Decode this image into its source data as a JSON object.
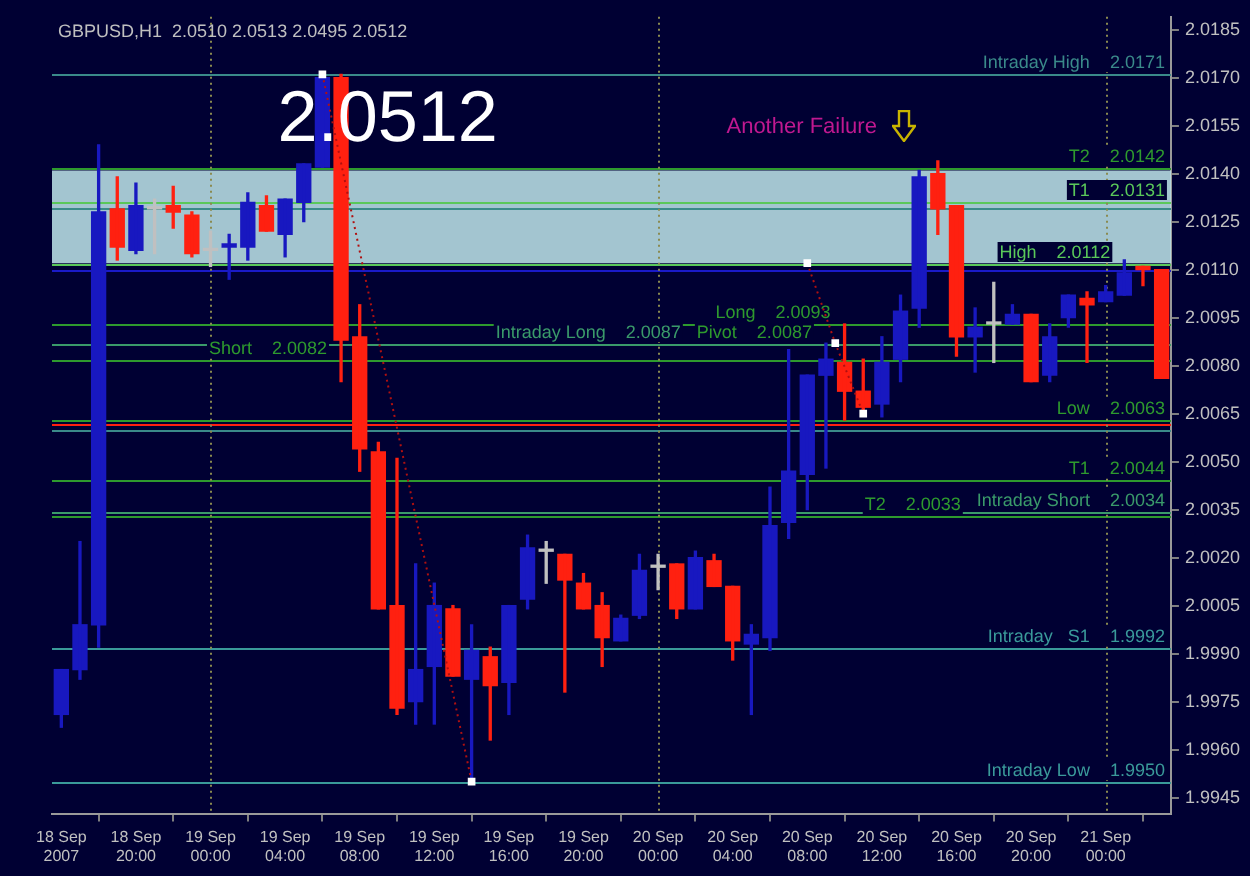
{
  "chart_data": {
    "type": "candlestick",
    "title": "GBPUSD,H1  2.0510 2.0513 2.0495 2.0512",
    "x": [
      "2007-09-18T16:00",
      "2007-09-18T17:00",
      "2007-09-18T18:00",
      "2007-09-18T19:00",
      "2007-09-18T20:00",
      "2007-09-18T21:00",
      "2007-09-18T22:00",
      "2007-09-18T23:00",
      "2007-09-19T00:00",
      "2007-09-19T01:00",
      "2007-09-19T02:00",
      "2007-09-19T03:00",
      "2007-09-19T04:00",
      "2007-09-19T05:00",
      "2007-09-19T06:00",
      "2007-09-19T07:00",
      "2007-09-19T08:00",
      "2007-09-19T09:00",
      "2007-09-19T10:00",
      "2007-09-19T11:00",
      "2007-09-19T12:00",
      "2007-09-19T13:00",
      "2007-09-19T14:00",
      "2007-09-19T15:00",
      "2007-09-19T16:00",
      "2007-09-19T17:00",
      "2007-09-19T18:00",
      "2007-09-19T19:00",
      "2007-09-19T20:00",
      "2007-09-19T21:00",
      "2007-09-19T22:00",
      "2007-09-19T23:00",
      "2007-09-20T00:00",
      "2007-09-20T01:00",
      "2007-09-20T02:00",
      "2007-09-20T03:00",
      "2007-09-20T04:00",
      "2007-09-20T05:00",
      "2007-09-20T06:00",
      "2007-09-20T07:00",
      "2007-09-20T08:00",
      "2007-09-20T09:00",
      "2007-09-20T10:00",
      "2007-09-20T11:00",
      "2007-09-20T12:00",
      "2007-09-20T13:00",
      "2007-09-20T14:00",
      "2007-09-20T15:00",
      "2007-09-20T16:00",
      "2007-09-20T17:00",
      "2007-09-20T18:00",
      "2007-09-20T19:00",
      "2007-09-20T20:00",
      "2007-09-20T21:00",
      "2007-09-20T22:00",
      "2007-09-20T23:00",
      "2007-09-21T00:00",
      "2007-09-21T01:00",
      "2007-09-21T02:00",
      "2007-09-21T03:00"
    ],
    "ohlc": [
      [
        1.9971,
        1.9985,
        1.9967,
        1.9985
      ],
      [
        1.9985,
        2.0025,
        1.9982,
        1.9999
      ],
      [
        1.9999,
        2.0149,
        1.9992,
        2.0128
      ],
      [
        2.0129,
        2.0139,
        2.0113,
        2.0117
      ],
      [
        2.0116,
        2.0137,
        2.0115,
        2.013
      ],
      [
        2.0129,
        2.0132,
        2.0115,
        2.0129
      ],
      [
        2.013,
        2.0136,
        2.0123,
        2.0128
      ],
      [
        2.0127,
        2.0128,
        2.0114,
        2.0115
      ],
      [
        2.0116,
        2.0122,
        2.0111,
        2.0116
      ],
      [
        2.0117,
        2.0121,
        2.0107,
        2.0118
      ],
      [
        2.0117,
        2.0134,
        2.0113,
        2.0131
      ],
      [
        2.013,
        2.0133,
        2.0122,
        2.0122
      ],
      [
        2.0121,
        2.0132,
        2.0114,
        2.0132
      ],
      [
        2.0131,
        2.0143,
        2.0125,
        2.0143
      ],
      [
        2.0142,
        2.0171,
        2.0142,
        2.017
      ],
      [
        2.017,
        2.0171,
        2.0075,
        2.0088
      ],
      [
        2.0089,
        2.0099,
        2.0047,
        2.0054
      ],
      [
        2.0053,
        2.0056,
        2.0004,
        2.0004
      ],
      [
        2.0005,
        2.0051,
        1.9971,
        1.9973
      ],
      [
        1.9975,
        2.0018,
        1.9968,
        1.9985
      ],
      [
        1.9986,
        2.0012,
        1.9968,
        2.0005
      ],
      [
        2.0004,
        2.0005,
        1.9983,
        1.9983
      ],
      [
        1.9982,
        1.9999,
        1.995,
        1.9991
      ],
      [
        1.9989,
        1.9992,
        1.9963,
        1.998
      ],
      [
        1.9981,
        2.0005,
        1.9971,
        2.0005
      ],
      [
        2.0007,
        2.0027,
        2.0004,
        2.0023
      ],
      [
        2.0022,
        2.0025,
        2.0012,
        2.0022
      ],
      [
        2.0021,
        2.0021,
        1.9978,
        2.0013
      ],
      [
        2.0012,
        2.0015,
        2.0004,
        2.0004
      ],
      [
        2.0005,
        2.0009,
        1.9986,
        1.9995
      ],
      [
        1.9994,
        2.0002,
        1.9994,
        2.0001
      ],
      [
        2.0002,
        2.0021,
        2.0001,
        2.0016
      ],
      [
        2.0017,
        2.0021,
        2.001,
        2.0017
      ],
      [
        2.0018,
        2.0018,
        2.0001,
        2.0004
      ],
      [
        2.0004,
        2.0022,
        2.0004,
        2.002
      ],
      [
        2.0019,
        2.0021,
        2.0011,
        2.0011
      ],
      [
        2.0011,
        2.0011,
        1.9988,
        1.9994
      ],
      [
        1.9993,
        1.9999,
        1.9971,
        1.9996
      ],
      [
        1.9995,
        2.0042,
        1.9991,
        2.003
      ],
      [
        2.0031,
        2.0085,
        2.0026,
        2.0047
      ],
      [
        2.0046,
        2.0077,
        2.0035,
        2.0077
      ],
      [
        2.0077,
        2.0087,
        2.0048,
        2.0082
      ],
      [
        2.0081,
        2.0093,
        2.0063,
        2.0072
      ],
      [
        2.0072,
        2.0082,
        2.0066,
        2.0067
      ],
      [
        2.0068,
        2.0089,
        2.0064,
        2.0081
      ],
      [
        2.0082,
        2.0102,
        2.0075,
        2.0097
      ],
      [
        2.0098,
        2.0141,
        2.0092,
        2.0139
      ],
      [
        2.014,
        2.0144,
        2.0121,
        2.0129
      ],
      [
        2.013,
        2.013,
        2.0083,
        2.0089
      ],
      [
        2.0089,
        2.0098,
        2.0078,
        2.0092
      ],
      [
        2.0093,
        2.0106,
        2.0081,
        2.0093
      ],
      [
        2.0093,
        2.0099,
        2.0093,
        2.0096
      ],
      [
        2.0096,
        2.0096,
        2.0075,
        2.0075
      ],
      [
        2.0077,
        2.0093,
        2.0075,
        2.0089
      ],
      [
        2.0095,
        2.0102,
        2.0092,
        2.0102
      ],
      [
        2.0101,
        2.0103,
        2.0081,
        2.0099
      ],
      [
        2.01,
        2.0105,
        2.01,
        2.0103
      ],
      [
        2.0102,
        2.0113,
        2.0102,
        2.0109
      ],
      [
        2.0111,
        2.0111,
        2.0105,
        2.011
      ],
      [
        2.011,
        2.011,
        2.0076,
        2.0076
      ]
    ],
    "colors": [
      "#1818c0",
      "#1818c0",
      "#1818c0",
      "#ff2010",
      "#1818c0",
      "#c0c0c0",
      "#ff2010",
      "#ff2010",
      "#c0c0c0",
      "#1818c0",
      "#1818c0",
      "#ff2010",
      "#1818c0",
      "#1818c0",
      "#1818c0",
      "#ff2010",
      "#ff2010",
      "#ff2010",
      "#ff2010",
      "#1818c0",
      "#1818c0",
      "#ff2010",
      "#1818c0",
      "#ff2010",
      "#1818c0",
      "#1818c0",
      "#c0c0c0",
      "#ff2010",
      "#ff2010",
      "#ff2010",
      "#1818c0",
      "#1818c0",
      "#c0c0c0",
      "#ff2010",
      "#1818c0",
      "#ff2010",
      "#ff2010",
      "#1818c0",
      "#1818c0",
      "#1818c0",
      "#1818c0",
      "#1818c0",
      "#ff2010",
      "#ff2010",
      "#1818c0",
      "#1818c0",
      "#1818c0",
      "#ff2010",
      "#ff2010",
      "#1818c0",
      "#c0c0c0",
      "#1818c0",
      "#ff2010",
      "#1818c0",
      "#1818c0",
      "#ff2010",
      "#1818c0",
      "#1818c0",
      "#ff2010",
      "#ff2010"
    ],
    "series": [
      {
        "type": "line",
        "color": "#b01010",
        "x": [
          "2007-09-19T06:00",
          "2007-09-19T14:00",
          "2007-09-20T07:00",
          "2007-09-20T08:00",
          "2007-09-20T09:30",
          "2007-09-20T11:00"
        ],
        "values": [
          2.0171,
          1.995,
          null,
          2.0112,
          2.0087,
          2.0065
        ]
      }
    ],
    "line_style": "dotted",
    "marker": "square",
    "xlim": [
      "2007-09-18T15:30",
      "2007-09-21T03:30"
    ],
    "xticks": [
      {
        "value": "2007-09-18T16:00",
        "label": "18 Sep 2007"
      },
      {
        "value": "2007-09-18T20:00",
        "label": "18 Sep 20:00"
      },
      {
        "value": "2007-09-19T00:00",
        "label": "19 Sep 00:00"
      },
      {
        "value": "2007-09-19T04:00",
        "label": "19 Sep 04:00"
      },
      {
        "value": "2007-09-19T08:00",
        "label": "19 Sep 08:00"
      },
      {
        "value": "2007-09-19T12:00",
        "label": "19 Sep 12:00"
      },
      {
        "value": "2007-09-19T16:00",
        "label": "19 Sep 16:00"
      },
      {
        "value": "2007-09-19T20:00",
        "label": "19 Sep 20:00"
      },
      {
        "value": "2007-09-20T00:00",
        "label": "20 Sep 00:00"
      },
      {
        "value": "2007-09-20T04:00",
        "label": "20 Sep 04:00"
      },
      {
        "value": "2007-09-20T08:00",
        "label": "20 Sep 08:00"
      },
      {
        "value": "2007-09-20T12:00",
        "label": "20 Sep 12:00"
      },
      {
        "value": "2007-09-20T16:00",
        "label": "20 Sep 16:00"
      },
      {
        "value": "2007-09-20T20:00",
        "label": "20 Sep 20:00"
      },
      {
        "value": "2007-09-21T00:00",
        "label": "21 Sep 00:00"
      }
    ],
    "ylim": [
      1.994,
      2.0189
    ],
    "yticks": [
      1.9945,
      {
        "value": 1.996,
        "label": "1.9960"
      },
      1.9975,
      {
        "value": 1.999,
        "label": "1.9990"
      },
      2.0005,
      {
        "value": 2.002,
        "label": "2.0020"
      },
      2.0035,
      {
        "value": 2.005,
        "label": "2.0050"
      },
      2.0065,
      {
        "value": 2.008,
        "label": "2.0080"
      },
      2.0095,
      {
        "value": 2.011,
        "label": "2.0110"
      },
      2.0125,
      {
        "value": 2.014,
        "label": "2.0140"
      },
      2.0155,
      {
        "value": 2.017,
        "label": "2.0170"
      },
      2.0185
    ],
    "bands": [
      {
        "axis": "y",
        "from": 2.0112,
        "to": 2.0141,
        "label": null,
        "color": "#bfe8ec"
      }
    ],
    "ref_lines": [
      {
        "axis": "y",
        "value": 2.0171,
        "label": "Intraday High    2.0171",
        "color": "#3a8a8a"
      },
      {
        "axis": "y",
        "value": 2.0142,
        "label": "T2    2.0142",
        "color": "#2e9a2e"
      },
      {
        "axis": "y",
        "value": 2.0131,
        "label": "T1    2.0131",
        "color": "#5ac85a"
      },
      {
        "axis": "y",
        "value": 2.0129,
        "label": null,
        "color": "#3a8a8a"
      },
      {
        "axis": "y",
        "value": 2.0112,
        "label": "High    2.0112",
        "color": "#5ac85a"
      },
      {
        "axis": "y",
        "value": 2.011,
        "label": null,
        "color": "#1a1ac8"
      },
      {
        "axis": "y",
        "value": 2.0093,
        "label": "Long    2.0093",
        "color": "#2e9a2e"
      },
      {
        "axis": "y",
        "value": 2.0087,
        "label": "Pivot    2.0087",
        "color": "#2e9a2e"
      },
      {
        "axis": "y",
        "value": 2.0087,
        "label": "Intraday Long    2.0087",
        "color": "#3a9a6a"
      },
      {
        "axis": "y",
        "value": 2.0082,
        "label": "Short    2.0082",
        "color": "#2e9a2e"
      },
      {
        "axis": "y",
        "value": 2.0063,
        "label": "Low    2.0063",
        "color": "#2e9a2e"
      },
      {
        "axis": "y",
        "value": 2.0062,
        "label": null,
        "color": "#ff2010"
      },
      {
        "axis": "y",
        "value": 2.006,
        "label": null,
        "color": "#3a8a8a"
      },
      {
        "axis": "y",
        "value": 2.0044,
        "label": "T1    2.0044",
        "color": "#2e9a2e"
      },
      {
        "axis": "y",
        "value": 2.0034,
        "label": "Intraday Short    2.0034",
        "color": "#3a9a6a"
      },
      {
        "axis": "y",
        "value": 2.0033,
        "label": "T2    2.0033",
        "color": "#2e9a2e"
      },
      {
        "axis": "y",
        "value": 1.9992,
        "label": "Intraday   S1    1.9992",
        "color": "#3a9a9a"
      },
      {
        "axis": "y",
        "value": 1.995,
        "label": "Intraday Low    1.9950",
        "color": "#3a9a9a"
      },
      {
        "axis": "x",
        "value": "2007-09-19T00:00",
        "label": null,
        "color": "#8a8a50",
        "line_style": "dotted"
      },
      {
        "axis": "x",
        "value": "2007-09-20T00:00",
        "label": null,
        "color": "#8a8a50",
        "line_style": "dotted"
      },
      {
        "axis": "x",
        "value": "2007-09-21T00:00",
        "label": null,
        "color": "#8a8a50",
        "line_style": "dotted"
      }
    ],
    "annotations": [
      "2.0512",
      "Another Failure"
    ]
  }
}
